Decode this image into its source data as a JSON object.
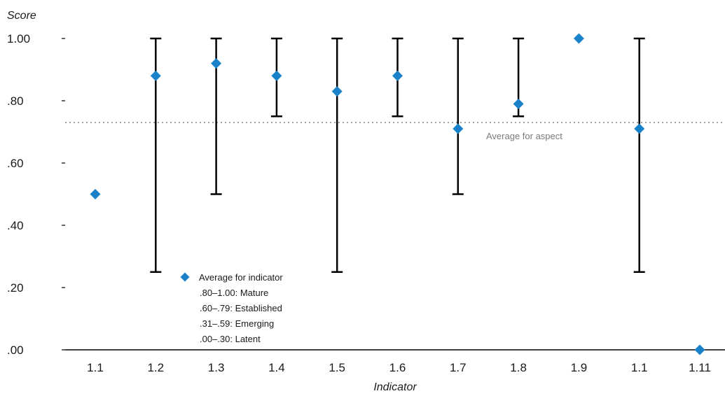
{
  "chart_data": {
    "type": "scatter",
    "ylabel": "Score",
    "xlabel": "Indicator",
    "ylim": [
      0,
      1
    ],
    "yticks": [
      {
        "value": 1.0,
        "label": "1.00"
      },
      {
        "value": 0.8,
        "label": ".80"
      },
      {
        "value": 0.6,
        "label": ".60"
      },
      {
        "value": 0.4,
        "label": ".40"
      },
      {
        "value": 0.2,
        "label": ".20"
      },
      {
        "value": 0.0,
        "label": ".00"
      }
    ],
    "grid": false,
    "categories": [
      "1.1",
      "1.2",
      "1.3",
      "1.4",
      "1.5",
      "1.6",
      "1.7",
      "1.8",
      "1.9",
      "1.1",
      "1.11"
    ],
    "values": [
      0.5,
      0.88,
      0.92,
      0.88,
      0.83,
      0.88,
      0.71,
      0.79,
      1.0,
      0.71,
      0.0
    ],
    "error_ranges": [
      null,
      [
        0.25,
        1.0
      ],
      [
        0.5,
        1.0
      ],
      [
        0.75,
        1.0
      ],
      [
        0.25,
        1.0
      ],
      [
        0.75,
        1.0
      ],
      [
        0.5,
        1.0
      ],
      [
        0.75,
        1.0
      ],
      null,
      [
        0.25,
        1.0
      ],
      null
    ],
    "reference_line": {
      "value": 0.73,
      "label": "Average for aspect"
    },
    "legend": {
      "position": "bottom-left",
      "marker_label": "Average for indicator",
      "items": [
        ".80–1.00: Mature",
        ".60–.79: Established",
        ".31–.59: Emerging",
        ".00–.30: Latent"
      ]
    },
    "colors": {
      "marker": "#1a82c8",
      "error_bar": "#000000",
      "reference_line": "#8c8c8c",
      "axis": "#000000"
    }
  }
}
